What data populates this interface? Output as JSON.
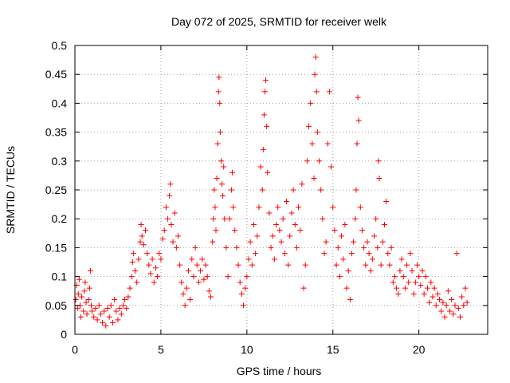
{
  "chart_data": {
    "type": "scatter",
    "title": "Day 072 of 2025, SRMTID for receiver welk",
    "xlabel": "GPS time / hours",
    "ylabel": "SRMTID / TECUs",
    "xlim": [
      0,
      24
    ],
    "ylim": [
      0,
      0.5
    ],
    "x_ticks": [
      0,
      5,
      10,
      15,
      20
    ],
    "x_tick_labels": [
      "0",
      "5",
      "10",
      "15",
      "20"
    ],
    "y_ticks": [
      0,
      0.05,
      0.1,
      0.15,
      0.2,
      0.25,
      0.3,
      0.35,
      0.4,
      0.45,
      0.5
    ],
    "y_tick_labels": [
      "0",
      "0.05",
      "0.1",
      "0.15",
      "0.2",
      "0.25",
      "0.3",
      "0.35",
      "0.4",
      "0.45",
      "0.5"
    ],
    "grid": true,
    "marker": "+",
    "series_color": "#ff0000",
    "series": [
      {
        "name": "SRMTID",
        "points": [
          [
            0.05,
            0.06
          ],
          [
            0.1,
            0.085
          ],
          [
            0.15,
            0.045
          ],
          [
            0.2,
            0.07
          ],
          [
            0.25,
            0.095
          ],
          [
            0.3,
            0.05
          ],
          [
            0.35,
            0.03
          ],
          [
            0.4,
            0.065
          ],
          [
            0.5,
            0.04
          ],
          [
            0.55,
            0.075
          ],
          [
            0.6,
            0.09
          ],
          [
            0.65,
            0.055
          ],
          [
            0.7,
            0.035
          ],
          [
            0.8,
            0.06
          ],
          [
            0.85,
            0.08
          ],
          [
            0.9,
            0.11
          ],
          [
            0.95,
            0.05
          ],
          [
            1.0,
            0.04
          ],
          [
            1.1,
            0.03
          ],
          [
            1.2,
            0.045
          ],
          [
            1.3,
            0.025
          ],
          [
            1.4,
            0.05
          ],
          [
            1.5,
            0.035
          ],
          [
            1.6,
            0.02
          ],
          [
            1.7,
            0.04
          ],
          [
            1.8,
            0.015
          ],
          [
            1.9,
            0.045
          ],
          [
            2.0,
            0.03
          ],
          [
            2.1,
            0.05
          ],
          [
            2.2,
            0.02
          ],
          [
            2.3,
            0.06
          ],
          [
            2.4,
            0.04
          ],
          [
            2.5,
            0.025
          ],
          [
            2.6,
            0.045
          ],
          [
            2.7,
            0.035
          ],
          [
            2.8,
            0.05
          ],
          [
            2.9,
            0.06
          ],
          [
            3.0,
            0.045
          ],
          [
            3.1,
            0.065
          ],
          [
            3.2,
            0.08
          ],
          [
            3.3,
            0.1
          ],
          [
            3.35,
            0.125
          ],
          [
            3.4,
            0.14
          ],
          [
            3.5,
            0.11
          ],
          [
            3.6,
            0.09
          ],
          [
            3.7,
            0.13
          ],
          [
            3.8,
            0.16
          ],
          [
            3.85,
            0.19
          ],
          [
            3.9,
            0.17
          ],
          [
            4.0,
            0.155
          ],
          [
            4.1,
            0.18
          ],
          [
            4.2,
            0.14
          ],
          [
            4.3,
            0.12
          ],
          [
            4.4,
            0.105
          ],
          [
            4.5,
            0.13
          ],
          [
            4.6,
            0.09
          ],
          [
            4.7,
            0.115
          ],
          [
            4.8,
            0.1
          ],
          [
            4.9,
            0.14
          ],
          [
            5.0,
            0.13
          ],
          [
            5.1,
            0.165
          ],
          [
            5.2,
            0.18
          ],
          [
            5.3,
            0.22
          ],
          [
            5.4,
            0.2
          ],
          [
            5.5,
            0.24
          ],
          [
            5.55,
            0.26
          ],
          [
            5.6,
            0.19
          ],
          [
            5.7,
            0.16
          ],
          [
            5.8,
            0.21
          ],
          [
            5.9,
            0.15
          ],
          [
            6.0,
            0.17
          ],
          [
            6.1,
            0.12
          ],
          [
            6.2,
            0.09
          ],
          [
            6.3,
            0.07
          ],
          [
            6.4,
            0.05
          ],
          [
            6.5,
            0.08
          ],
          [
            6.6,
            0.11
          ],
          [
            6.7,
            0.06
          ],
          [
            6.8,
            0.13
          ],
          [
            6.9,
            0.1
          ],
          [
            7.0,
            0.15
          ],
          [
            7.1,
            0.12
          ],
          [
            7.2,
            0.09
          ],
          [
            7.3,
            0.11
          ],
          [
            7.4,
            0.13
          ],
          [
            7.5,
            0.095
          ],
          [
            7.6,
            0.12
          ],
          [
            7.7,
            0.1
          ],
          [
            7.8,
            0.075
          ],
          [
            7.9,
            0.065
          ],
          [
            8.0,
            0.16
          ],
          [
            8.05,
            0.2
          ],
          [
            8.1,
            0.25
          ],
          [
            8.15,
            0.22
          ],
          [
            8.2,
            0.18
          ],
          [
            8.25,
            0.27
          ],
          [
            8.3,
            0.33
          ],
          [
            8.35,
            0.42
          ],
          [
            8.38,
            0.445
          ],
          [
            8.42,
            0.4
          ],
          [
            8.45,
            0.35
          ],
          [
            8.5,
            0.3
          ],
          [
            8.55,
            0.26
          ],
          [
            8.6,
            0.24
          ],
          [
            8.65,
            0.29
          ],
          [
            8.7,
            0.2
          ],
          [
            8.8,
            0.15
          ],
          [
            8.9,
            0.1
          ],
          [
            9.0,
            0.2
          ],
          [
            9.1,
            0.25
          ],
          [
            9.15,
            0.28
          ],
          [
            9.2,
            0.22
          ],
          [
            9.3,
            0.18
          ],
          [
            9.4,
            0.15
          ],
          [
            9.5,
            0.12
          ],
          [
            9.6,
            0.09
          ],
          [
            9.7,
            0.07
          ],
          [
            9.8,
            0.05
          ],
          [
            9.9,
            0.08
          ],
          [
            10.0,
            0.1
          ],
          [
            10.1,
            0.13
          ],
          [
            10.2,
            0.16
          ],
          [
            10.3,
            0.12
          ],
          [
            10.4,
            0.19
          ],
          [
            10.5,
            0.14
          ],
          [
            10.6,
            0.17
          ],
          [
            10.7,
            0.22
          ],
          [
            10.8,
            0.29
          ],
          [
            10.9,
            0.25
          ],
          [
            10.95,
            0.32
          ],
          [
            11.0,
            0.38
          ],
          [
            11.05,
            0.42
          ],
          [
            11.1,
            0.44
          ],
          [
            11.15,
            0.36
          ],
          [
            11.2,
            0.28
          ],
          [
            11.3,
            0.21
          ],
          [
            11.4,
            0.15
          ],
          [
            11.5,
            0.17
          ],
          [
            11.6,
            0.13
          ],
          [
            11.7,
            0.19
          ],
          [
            11.8,
            0.22
          ],
          [
            11.9,
            0.18
          ],
          [
            12.0,
            0.16
          ],
          [
            12.1,
            0.2
          ],
          [
            12.2,
            0.14
          ],
          [
            12.3,
            0.23
          ],
          [
            12.4,
            0.12
          ],
          [
            12.5,
            0.17
          ],
          [
            12.6,
            0.21
          ],
          [
            12.7,
            0.25
          ],
          [
            12.8,
            0.19
          ],
          [
            12.9,
            0.15
          ],
          [
            13.0,
            0.22
          ],
          [
            13.1,
            0.18
          ],
          [
            13.2,
            0.26
          ],
          [
            13.3,
            0.08
          ],
          [
            13.4,
            0.12
          ],
          [
            13.5,
            0.3
          ],
          [
            13.6,
            0.36
          ],
          [
            13.7,
            0.4
          ],
          [
            13.8,
            0.33
          ],
          [
            13.9,
            0.27
          ],
          [
            13.95,
            0.45
          ],
          [
            14.0,
            0.48
          ],
          [
            14.05,
            0.42
          ],
          [
            14.1,
            0.35
          ],
          [
            14.2,
            0.3
          ],
          [
            14.3,
            0.25
          ],
          [
            14.4,
            0.2
          ],
          [
            14.5,
            0.14
          ],
          [
            14.6,
            0.16
          ],
          [
            14.7,
            0.33
          ],
          [
            14.8,
            0.42
          ],
          [
            14.9,
            0.29
          ],
          [
            15.0,
            0.22
          ],
          [
            15.1,
            0.18
          ],
          [
            15.2,
            0.12
          ],
          [
            15.3,
            0.15
          ],
          [
            15.4,
            0.1
          ],
          [
            15.5,
            0.17
          ],
          [
            15.6,
            0.13
          ],
          [
            15.7,
            0.19
          ],
          [
            15.8,
            0.08
          ],
          [
            15.9,
            0.11
          ],
          [
            16.0,
            0.06
          ],
          [
            16.1,
            0.14
          ],
          [
            16.2,
            0.16
          ],
          [
            16.3,
            0.2
          ],
          [
            16.35,
            0.25
          ],
          [
            16.4,
            0.33
          ],
          [
            16.45,
            0.41
          ],
          [
            16.5,
            0.37
          ],
          [
            16.6,
            0.22
          ],
          [
            16.7,
            0.18
          ],
          [
            16.8,
            0.15
          ],
          [
            16.9,
            0.12
          ],
          [
            17.0,
            0.16
          ],
          [
            17.1,
            0.14
          ],
          [
            17.2,
            0.11
          ],
          [
            17.3,
            0.13
          ],
          [
            17.4,
            0.17
          ],
          [
            17.5,
            0.2
          ],
          [
            17.6,
            0.15
          ],
          [
            17.65,
            0.3
          ],
          [
            17.7,
            0.27
          ],
          [
            17.8,
            0.12
          ],
          [
            17.9,
            0.16
          ],
          [
            18.0,
            0.19
          ],
          [
            18.1,
            0.23
          ],
          [
            18.2,
            0.14
          ],
          [
            18.3,
            0.12
          ],
          [
            18.4,
            0.15
          ],
          [
            18.5,
            0.09
          ],
          [
            18.6,
            0.1
          ],
          [
            18.7,
            0.08
          ],
          [
            18.8,
            0.07
          ],
          [
            18.9,
            0.11
          ],
          [
            19.0,
            0.13
          ],
          [
            19.1,
            0.1
          ],
          [
            19.2,
            0.08
          ],
          [
            19.3,
            0.12
          ],
          [
            19.4,
            0.09
          ],
          [
            19.5,
            0.14
          ],
          [
            19.6,
            0.11
          ],
          [
            19.7,
            0.07
          ],
          [
            19.8,
            0.09
          ],
          [
            19.9,
            0.12
          ],
          [
            20.0,
            0.1
          ],
          [
            20.1,
            0.085
          ],
          [
            20.2,
            0.11
          ],
          [
            20.3,
            0.07
          ],
          [
            20.4,
            0.1
          ],
          [
            20.5,
            0.08
          ],
          [
            20.6,
            0.055
          ],
          [
            20.7,
            0.09
          ],
          [
            20.8,
            0.065
          ],
          [
            20.9,
            0.08
          ],
          [
            21.0,
            0.05
          ],
          [
            21.1,
            0.07
          ],
          [
            21.2,
            0.06
          ],
          [
            21.3,
            0.04
          ],
          [
            21.4,
            0.055
          ],
          [
            21.5,
            0.03
          ],
          [
            21.6,
            0.05
          ],
          [
            21.7,
            0.075
          ],
          [
            21.8,
            0.04
          ],
          [
            21.9,
            0.06
          ],
          [
            22.0,
            0.035
          ],
          [
            22.1,
            0.05
          ],
          [
            22.2,
            0.14
          ],
          [
            22.3,
            0.045
          ],
          [
            22.4,
            0.03
          ],
          [
            22.5,
            0.065
          ],
          [
            22.6,
            0.05
          ],
          [
            22.7,
            0.08
          ],
          [
            22.8,
            0.055
          ]
        ]
      }
    ]
  }
}
